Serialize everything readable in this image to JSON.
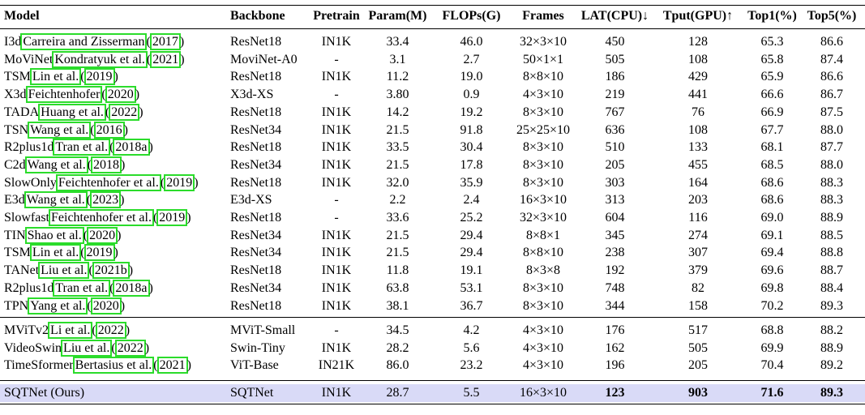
{
  "columns": {
    "model": "Model",
    "backbone": "Backbone",
    "pretrain": "Pretrain",
    "param": "Param(M)",
    "flops": "FLOPs(G)",
    "frames": "Frames",
    "lat": "LAT(CPU)↓",
    "tput": "Tput(GPU)↑",
    "top1": "Top1(%)",
    "top5": "Top5(%)"
  },
  "group1": [
    {
      "name": "I3d",
      "authors": "Carreira and Zisserman",
      "year": "2017",
      "backbone": "ResNet18",
      "pretrain": "IN1K",
      "param": "33.4",
      "flops": "46.0",
      "frames": "32×3×10",
      "lat": "450",
      "tput": "128",
      "top1": "65.3",
      "top5": "86.6"
    },
    {
      "name": "MoViNet",
      "authors": "Kondratyuk et al.",
      "year": "2021",
      "backbone": "MoviNet-A0",
      "pretrain": "-",
      "param": "3.1",
      "flops": "2.7",
      "frames": "50×1×1",
      "lat": "505",
      "tput": "108",
      "top1": "65.8",
      "top5": "87.4"
    },
    {
      "name": "TSM",
      "authors": "Lin et al.",
      "year": "2019",
      "backbone": "ResNet18",
      "pretrain": "IN1K",
      "param": "11.2",
      "flops": "19.0",
      "frames": "8×8×10",
      "lat": "186",
      "tput": "429",
      "top1": "65.9",
      "top5": "86.6"
    },
    {
      "name": "X3d",
      "authors": "Feichtenhofer",
      "year": "2020",
      "backbone": "X3d-XS",
      "pretrain": "-",
      "param": "3.80",
      "flops": "0.9",
      "frames": "4×3×10",
      "lat": "219",
      "tput": "441",
      "top1": "66.6",
      "top5": "86.7"
    },
    {
      "name": "TADA",
      "authors": "Huang et al.",
      "year": "2022",
      "backbone": "ResNet18",
      "pretrain": "IN1K",
      "param": "14.2",
      "flops": "19.2",
      "frames": "8×3×10",
      "lat": "767",
      "tput": "76",
      "top1": "66.9",
      "top5": "87.5"
    },
    {
      "name": "TSN",
      "authors": "Wang et al.",
      "year": "2016",
      "backbone": "ResNet34",
      "pretrain": "IN1K",
      "param": "21.5",
      "flops": "91.8",
      "frames": "25×25×10",
      "lat": "636",
      "tput": "108",
      "top1": "67.7",
      "top5": "88.0"
    },
    {
      "name": "R2plus1d",
      "authors": "Tran et al.",
      "year": "2018a",
      "backbone": "ResNet18",
      "pretrain": "IN1K",
      "param": "33.5",
      "flops": "30.4",
      "frames": "8×3×10",
      "lat": "510",
      "tput": "133",
      "top1": "68.1",
      "top5": "87.7"
    },
    {
      "name": "C2d",
      "authors": "Wang et al.",
      "year": "2018",
      "backbone": "ResNet34",
      "pretrain": "IN1K",
      "param": "21.5",
      "flops": "17.8",
      "frames": "8×3×10",
      "lat": "205",
      "tput": "455",
      "top1": "68.5",
      "top5": "88.0"
    },
    {
      "name": "SlowOnly",
      "authors": "Feichtenhofer et al.",
      "year": "2019",
      "backbone": "ResNet18",
      "pretrain": "IN1K",
      "param": "32.0",
      "flops": "35.9",
      "frames": "8×3×10",
      "lat": "303",
      "tput": "164",
      "top1": "68.6",
      "top5": "88.3"
    },
    {
      "name": "E3d",
      "authors": "Wang et al.",
      "year": "2023",
      "backbone": "E3d-XS",
      "pretrain": "-",
      "param": "2.2",
      "flops": "2.4",
      "frames": "16×3×10",
      "lat": "313",
      "tput": "203",
      "top1": "68.6",
      "top5": "88.3"
    },
    {
      "name": "Slowfast",
      "authors": "Feichtenhofer et al.",
      "year": "2019",
      "backbone": "ResNet18",
      "pretrain": "-",
      "param": "33.6",
      "flops": "25.2",
      "frames": "32×3×10",
      "lat": "604",
      "tput": "116",
      "top1": "69.0",
      "top5": "88.9"
    },
    {
      "name": "TIN",
      "authors": "Shao et al.",
      "year": "2020",
      "backbone": "ResNet34",
      "pretrain": "IN1K",
      "param": "21.5",
      "flops": "29.4",
      "frames": "8×8×1",
      "lat": "345",
      "tput": "274",
      "top1": "69.1",
      "top5": "88.5"
    },
    {
      "name": "TSM",
      "authors": "Lin et al.",
      "year": "2019",
      "backbone": "ResNet34",
      "pretrain": "IN1K",
      "param": "21.5",
      "flops": "29.4",
      "frames": "8×8×10",
      "lat": "238",
      "tput": "307",
      "top1": "69.4",
      "top5": "88.8"
    },
    {
      "name": "TANet",
      "authors": "Liu et al.",
      "year": "2021b",
      "backbone": "ResNet18",
      "pretrain": "IN1K",
      "param": "11.8",
      "flops": "19.1",
      "frames": "8×3×8",
      "lat": "192",
      "tput": "379",
      "top1": "69.6",
      "top5": "88.7"
    },
    {
      "name": "R2plus1d",
      "authors": "Tran et al.",
      "year": "2018a",
      "backbone": "ResNet34",
      "pretrain": "IN1K",
      "param": "63.8",
      "flops": "53.1",
      "frames": "8×3×10",
      "lat": "748",
      "tput": "82",
      "top1": "69.8",
      "top5": "88.4"
    },
    {
      "name": "TPN",
      "authors": "Yang et al.",
      "year": "2020",
      "backbone": "ResNet18",
      "pretrain": "IN1K",
      "param": "38.1",
      "flops": "36.7",
      "frames": "8×3×10",
      "lat": "344",
      "tput": "158",
      "top1": "70.2",
      "top5": "89.3"
    }
  ],
  "group2": [
    {
      "name": "MViTv2",
      "authors": "Li et al.",
      "year": "2022",
      "backbone": "MViT-Small",
      "pretrain": "-",
      "param": "34.5",
      "flops": "4.2",
      "frames": "4×3×10",
      "lat": "176",
      "tput": "517",
      "top1": "68.8",
      "top5": "88.2"
    },
    {
      "name": "VideoSwin",
      "authors": "Liu et al.",
      "year": "2022",
      "backbone": "Swin-Tiny",
      "pretrain": "IN1K",
      "param": "28.2",
      "flops": "5.6",
      "frames": "4×3×10",
      "lat": "162",
      "tput": "505",
      "top1": "69.9",
      "top5": "88.9"
    },
    {
      "name": "TimeSformer",
      "authors": "Bertasius et al.",
      "year": "2021",
      "backbone": "ViT-Base",
      "pretrain": "IN21K",
      "param": "86.0",
      "flops": "23.2",
      "frames": "4×3×10",
      "lat": "196",
      "tput": "205",
      "top1": "70.4",
      "top5": "89.2"
    }
  ],
  "ours": {
    "name": "SQTNet (Ours)",
    "backbone": "SQTNet",
    "pretrain": "IN1K",
    "param": "28.7",
    "flops": "5.5",
    "frames": "16×3×10",
    "lat": "123",
    "tput": "903",
    "top1": "71.6",
    "top5": "89.3"
  },
  "colors": {
    "citation_box": "#2bdc2b",
    "highlight_row": "#d9daf7"
  }
}
